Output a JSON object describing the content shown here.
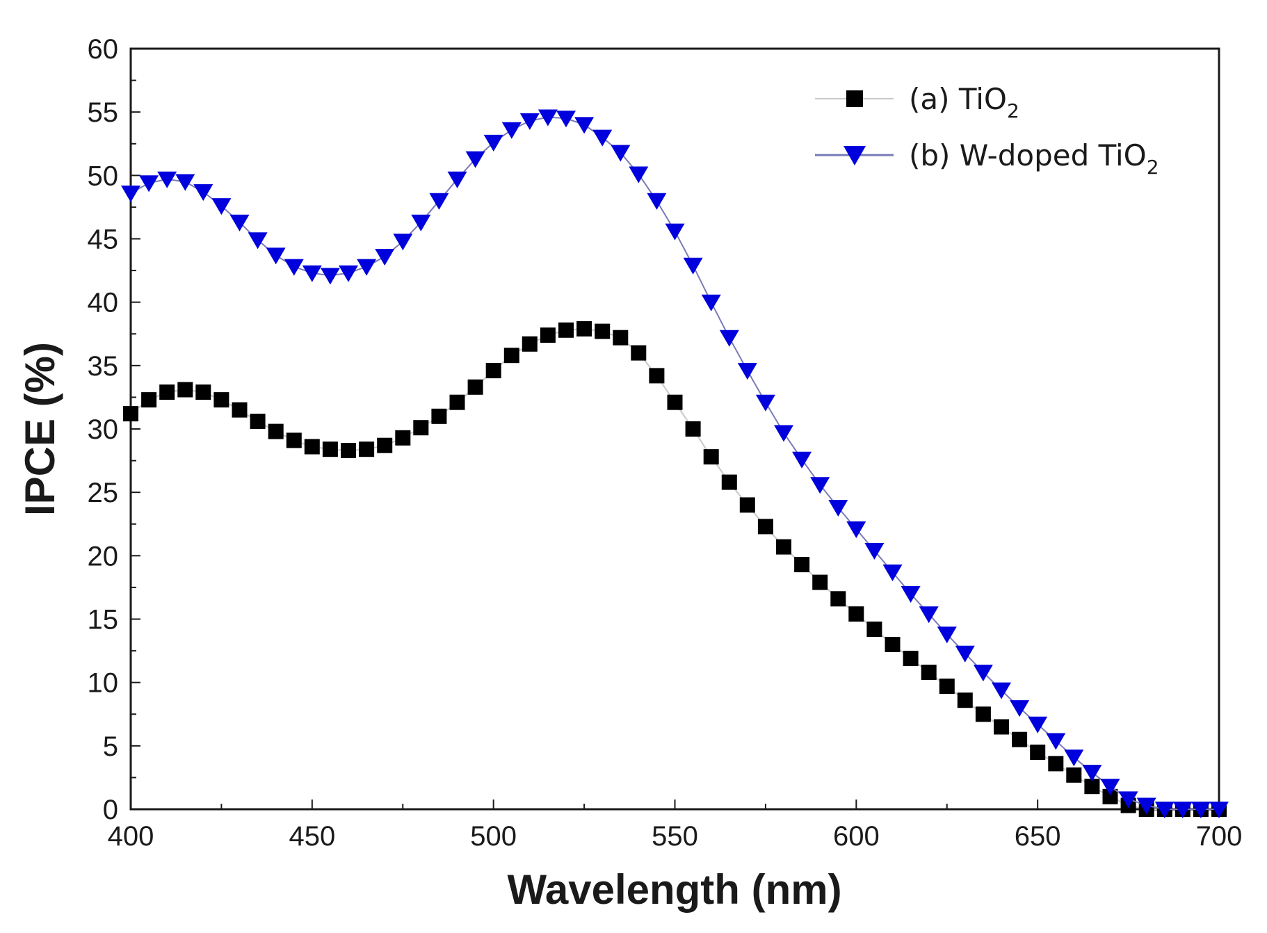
{
  "chart_data": {
    "type": "line",
    "xlabel": "Wavelength (nm)",
    "ylabel": "IPCE (%)",
    "xlim": [
      400,
      700
    ],
    "ylim": [
      0,
      60
    ],
    "xticks": [
      "400",
      "450",
      "500",
      "550",
      "600",
      "650",
      "700"
    ],
    "yticks": [
      "0",
      "5",
      "10",
      "15",
      "20",
      "25",
      "30",
      "35",
      "40",
      "45",
      "50",
      "55",
      "60"
    ],
    "grid": false,
    "legend_position": "top-right",
    "series": [
      {
        "name": "(a) TiO",
        "name_sub": "2",
        "marker": "square",
        "color": "#000000",
        "line_color": "#c8c8c8",
        "x": [
          400,
          405,
          410,
          415,
          420,
          425,
          430,
          435,
          440,
          445,
          450,
          455,
          460,
          465,
          470,
          475,
          480,
          485,
          490,
          495,
          500,
          505,
          510,
          515,
          520,
          525,
          530,
          535,
          540,
          545,
          550,
          555,
          560,
          565,
          570,
          575,
          580,
          585,
          590,
          595,
          600,
          605,
          610,
          615,
          620,
          625,
          630,
          635,
          640,
          645,
          650,
          655,
          660,
          665,
          670,
          675,
          680,
          685,
          690,
          695,
          700
        ],
        "y": [
          31.2,
          32.3,
          32.9,
          33.1,
          32.9,
          32.3,
          31.5,
          30.6,
          29.8,
          29.1,
          28.6,
          28.4,
          28.3,
          28.4,
          28.7,
          29.3,
          30.1,
          31.0,
          32.1,
          33.3,
          34.6,
          35.8,
          36.7,
          37.4,
          37.8,
          37.9,
          37.7,
          37.2,
          36.0,
          34.2,
          32.1,
          30.0,
          27.8,
          25.8,
          24.0,
          22.3,
          20.7,
          19.3,
          17.9,
          16.6,
          15.4,
          14.2,
          13.0,
          11.9,
          10.8,
          9.7,
          8.6,
          7.5,
          6.5,
          5.5,
          4.5,
          3.6,
          2.7,
          1.8,
          1.0,
          0.3,
          0.0,
          0.0,
          0.0,
          0.0,
          0.0
        ]
      },
      {
        "name": "(b) W-doped TiO",
        "name_sub": "2",
        "marker": "triangle-down",
        "color": "#0000dd",
        "line_color": "#7a7ab8",
        "x": [
          400,
          405,
          410,
          415,
          420,
          425,
          430,
          435,
          440,
          445,
          450,
          455,
          460,
          465,
          470,
          475,
          480,
          485,
          490,
          495,
          500,
          505,
          510,
          515,
          520,
          525,
          530,
          535,
          540,
          545,
          550,
          555,
          560,
          565,
          570,
          575,
          580,
          585,
          590,
          595,
          600,
          605,
          610,
          615,
          620,
          625,
          630,
          635,
          640,
          645,
          650,
          655,
          660,
          665,
          670,
          675,
          680,
          685,
          690,
          695,
          700
        ],
        "y": [
          48.6,
          49.4,
          49.7,
          49.5,
          48.7,
          47.6,
          46.3,
          44.9,
          43.7,
          42.8,
          42.3,
          42.1,
          42.3,
          42.8,
          43.6,
          44.8,
          46.3,
          48.0,
          49.7,
          51.3,
          52.6,
          53.6,
          54.3,
          54.6,
          54.5,
          54.0,
          53.0,
          51.8,
          50.1,
          48.0,
          45.6,
          42.9,
          40.0,
          37.2,
          34.6,
          32.1,
          29.7,
          27.6,
          25.6,
          23.8,
          22.1,
          20.4,
          18.7,
          17.0,
          15.4,
          13.8,
          12.3,
          10.8,
          9.4,
          8.0,
          6.7,
          5.4,
          4.1,
          2.9,
          1.8,
          0.8,
          0.3,
          0.0,
          0.0,
          0.0,
          0.0
        ]
      }
    ]
  }
}
